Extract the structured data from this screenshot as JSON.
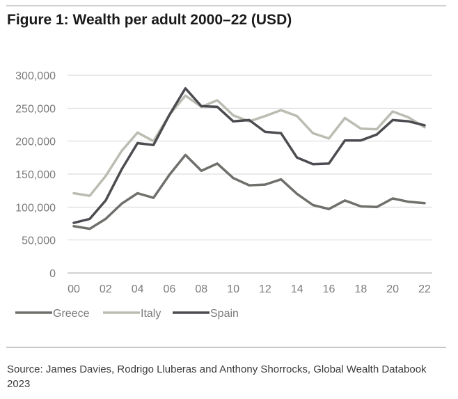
{
  "title": "Figure 1: Wealth per adult 2000–22 (USD)",
  "source": "Source: James Davies, Rodrigo Lluberas and Anthony Shorrocks, Global Wealth Databook 2023",
  "chart_data": {
    "type": "line",
    "title": "",
    "xlabel": "",
    "ylabel": "",
    "x": [
      2000,
      2001,
      2002,
      2003,
      2004,
      2005,
      2006,
      2007,
      2008,
      2009,
      2010,
      2011,
      2012,
      2013,
      2014,
      2015,
      2016,
      2017,
      2018,
      2019,
      2020,
      2021,
      2022
    ],
    "x_tick_labels": [
      "00",
      "02",
      "04",
      "06",
      "08",
      "10",
      "12",
      "14",
      "16",
      "18",
      "20",
      "22"
    ],
    "x_tick_values": [
      2000,
      2002,
      2004,
      2006,
      2008,
      2010,
      2012,
      2014,
      2016,
      2018,
      2020,
      2022
    ],
    "y_tick_labels": [
      "0",
      "50,000",
      "100,000",
      "150,000",
      "200,000",
      "250,000",
      "300,000"
    ],
    "y_tick_values": [
      0,
      50000,
      100000,
      150000,
      200000,
      250000,
      300000
    ],
    "ylim": [
      0,
      300000
    ],
    "grid": "horizontal",
    "legend_position": "bottom-left",
    "series": [
      {
        "name": "Greece",
        "color": "#6f6f6b",
        "values": [
          71000,
          67000,
          82000,
          105000,
          121000,
          114000,
          149000,
          179000,
          155000,
          166000,
          144000,
          133000,
          134000,
          142000,
          120000,
          103000,
          97000,
          110000,
          101000,
          100000,
          113000,
          108000,
          106000
        ]
      },
      {
        "name": "Italy",
        "color": "#bdbcb3",
        "values": [
          121000,
          117000,
          147000,
          185000,
          213000,
          200000,
          240000,
          269000,
          252000,
          262000,
          239000,
          230000,
          238000,
          247000,
          238000,
          212000,
          204000,
          235000,
          219000,
          218000,
          245000,
          236000,
          221000
        ]
      },
      {
        "name": "Spain",
        "color": "#4b4b50",
        "values": [
          76000,
          82000,
          110000,
          157000,
          197000,
          194000,
          240000,
          280000,
          253000,
          252000,
          230000,
          232000,
          214000,
          212000,
          175000,
          165000,
          166000,
          201000,
          201000,
          210000,
          232000,
          230000,
          224000
        ]
      }
    ]
  }
}
